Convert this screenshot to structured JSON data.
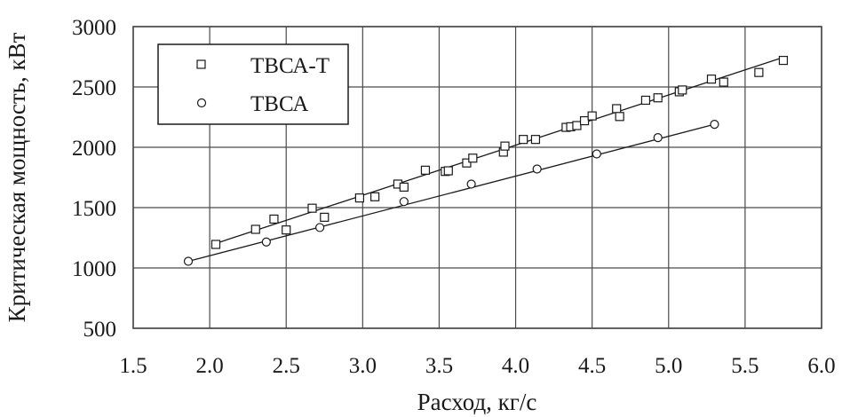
{
  "chart_data": {
    "type": "scatter",
    "xlabel": "Расход, кг/с",
    "ylabel": "Критическая мощность, кВт",
    "xlim": [
      1.5,
      6.0
    ],
    "ylim": [
      500,
      3000
    ],
    "x_ticks": [
      "1.5",
      "2.0",
      "2.5",
      "3.0",
      "3.5",
      "4.0",
      "4.5",
      "5.0",
      "5.5",
      "6.0"
    ],
    "y_ticks": [
      "500",
      "1000",
      "1500",
      "2000",
      "2500",
      "3000"
    ],
    "x_tick_values": [
      1.5,
      2.0,
      2.5,
      3.0,
      3.5,
      4.0,
      4.5,
      5.0,
      5.5,
      6.0
    ],
    "y_tick_values": [
      500,
      1000,
      1500,
      2000,
      2500,
      3000
    ],
    "grid": true,
    "legend_position": "top-left",
    "series": [
      {
        "name": "ТВСА-Т",
        "marker": "square",
        "x": [
          2.04,
          2.3,
          2.42,
          2.5,
          2.67,
          2.75,
          2.98,
          3.08,
          3.23,
          3.27,
          3.41,
          3.54,
          3.56,
          3.68,
          3.72,
          3.92,
          3.93,
          4.05,
          4.13,
          4.33,
          4.36,
          4.4,
          4.45,
          4.5,
          4.66,
          4.68,
          4.85,
          4.93,
          5.07,
          5.09,
          5.28,
          5.36,
          5.59,
          5.75
        ],
        "y": [
          1195,
          1320,
          1405,
          1315,
          1495,
          1420,
          1580,
          1590,
          1695,
          1670,
          1810,
          1800,
          1805,
          1870,
          1910,
          1960,
          2010,
          2065,
          2065,
          2165,
          2170,
          2180,
          2220,
          2260,
          2320,
          2255,
          2390,
          2410,
          2460,
          2475,
          2565,
          2540,
          2620,
          2720
        ]
      },
      {
        "name": "ТВСА",
        "marker": "circle",
        "x": [
          1.86,
          2.37,
          2.72,
          3.27,
          3.71,
          4.14,
          4.53,
          4.93,
          5.3
        ],
        "y": [
          1055,
          1215,
          1335,
          1550,
          1695,
          1820,
          1945,
          2080,
          2190
        ]
      }
    ],
    "fit_lines": [
      {
        "series": "ТВСА-Т",
        "x": [
          2.02,
          5.75
        ],
        "y": [
          1195,
          2745
        ]
      },
      {
        "series": "ТВСА",
        "x": [
          1.86,
          5.3
        ],
        "y": [
          1055,
          2190
        ]
      }
    ]
  }
}
